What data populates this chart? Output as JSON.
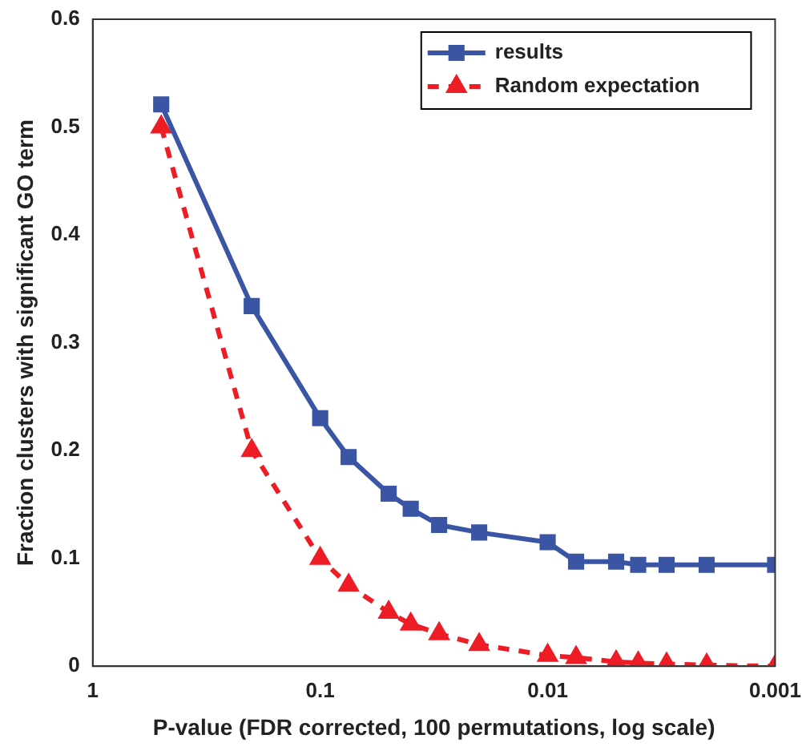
{
  "chart_data": {
    "type": "line",
    "xlabel": "P-value (FDR corrected, 100 permutations, log scale)",
    "ylabel": "Fraction clusters with significant GO term",
    "log": "x",
    "xlim": [
      1,
      0.001
    ],
    "xticks": [
      1,
      0.1,
      0.01,
      0.001
    ],
    "ylim": [
      0,
      0.6
    ],
    "yticks": [
      0,
      0.1,
      0.2,
      0.3,
      0.4,
      0.5,
      0.6
    ],
    "grid": false,
    "legend": "top right",
    "x": [
      0.5,
      0.2,
      0.1,
      0.075,
      0.05,
      0.04,
      0.03,
      0.02,
      0.01,
      0.0075,
      0.005,
      0.004,
      0.003,
      0.002,
      0.001
    ],
    "series": [
      {
        "name": "results",
        "color": "#3a55a4",
        "marker": "square",
        "line_style": "solid",
        "values": [
          0.521,
          0.334,
          0.23,
          0.194,
          0.16,
          0.146,
          0.131,
          0.124,
          0.115,
          0.097,
          0.097,
          0.094,
          0.094,
          0.094,
          0.094
        ]
      },
      {
        "name": "Random expectation",
        "color": "#ee1c25",
        "marker": "triangle",
        "line_style": "dashed",
        "values": [
          0.5,
          0.2,
          0.1,
          0.075,
          0.05,
          0.039,
          0.03,
          0.02,
          0.01,
          0.008,
          0.004,
          0.003,
          0.002,
          0.001,
          0
        ]
      }
    ]
  }
}
